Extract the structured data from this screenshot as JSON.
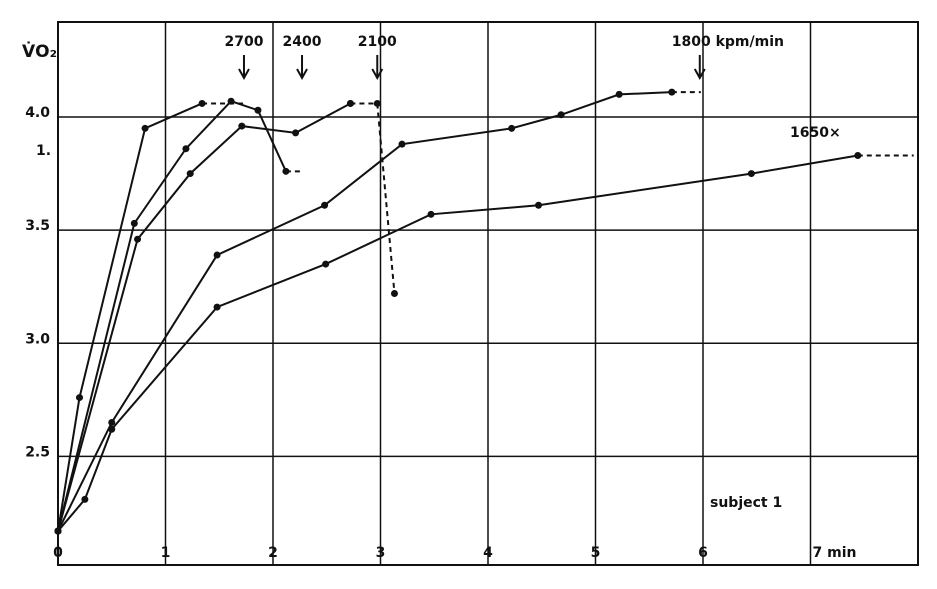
{
  "chart_data": {
    "type": "line",
    "y_label": "V̇O₂",
    "xlim": [
      0,
      8
    ],
    "ylim": [
      2.02,
      4.42
    ],
    "xticks": [
      {
        "value": 0,
        "label": "0"
      },
      1,
      2,
      3,
      4,
      5,
      6,
      {
        "value": 7,
        "label": "7 min"
      }
    ],
    "yticks": [
      2.5,
      3.0,
      3.5,
      4.0
    ],
    "grid": true,
    "color": "#111111",
    "series": [
      {
        "style": "solid",
        "markers": true,
        "x": [
          0,
          0.2,
          0.81,
          1.34
        ],
        "values": [
          2.17,
          2.76,
          3.95,
          4.06
        ]
      },
      {
        "style": "dashed",
        "markers": false,
        "x": [
          1.34,
          1.73
        ],
        "values": [
          4.06,
          4.06
        ]
      },
      {
        "style": "solid",
        "markers": true,
        "x": [
          0,
          0.71,
          1.19,
          1.61,
          1.86,
          2.12
        ],
        "values": [
          2.17,
          3.53,
          3.86,
          4.07,
          4.03,
          3.76
        ]
      },
      {
        "style": "dashed",
        "markers": false,
        "x": [
          2.12,
          2.27
        ],
        "values": [
          3.76,
          3.76
        ]
      },
      {
        "style": "solid",
        "markers": true,
        "x": [
          0,
          0.74,
          1.23,
          1.71,
          2.21,
          2.72
        ],
        "values": [
          2.17,
          3.46,
          3.75,
          3.96,
          3.93,
          4.06
        ]
      },
      {
        "style": "dashed",
        "markers": true,
        "x": [
          2.72,
          2.97,
          3.13
        ],
        "values": [
          4.06,
          4.06,
          3.22
        ]
      },
      {
        "style": "solid",
        "markers": true,
        "x": [
          0,
          0.5,
          1.48,
          2.48,
          3.2,
          4.22,
          4.68,
          5.22,
          5.71
        ],
        "values": [
          2.17,
          2.65,
          3.39,
          3.61,
          3.88,
          3.95,
          4.01,
          4.1,
          4.11
        ]
      },
      {
        "style": "dashed",
        "markers": false,
        "x": [
          5.71,
          5.98
        ],
        "values": [
          4.11,
          4.11
        ]
      },
      {
        "style": "solid",
        "markers": true,
        "x": [
          0,
          0.25,
          0.5,
          1.48,
          2.49,
          3.47,
          4.47,
          6.45,
          7.44
        ],
        "values": [
          2.17,
          2.31,
          2.62,
          3.16,
          3.35,
          3.57,
          3.61,
          3.75,
          3.83
        ]
      },
      {
        "style": "dashed",
        "markers": false,
        "x": [
          7.44,
          7.96
        ],
        "values": [
          3.83,
          3.83
        ]
      }
    ],
    "arrow_labels": [
      {
        "text": "2700",
        "x": 1.73
      },
      {
        "text": "2400",
        "x": 2.27
      },
      {
        "text": "2100",
        "x": 2.97
      },
      {
        "text": "1800 kpm/min",
        "x": 5.97
      }
    ],
    "end_label": "1650×",
    "note": "subject 1",
    "stray_label": "1."
  }
}
